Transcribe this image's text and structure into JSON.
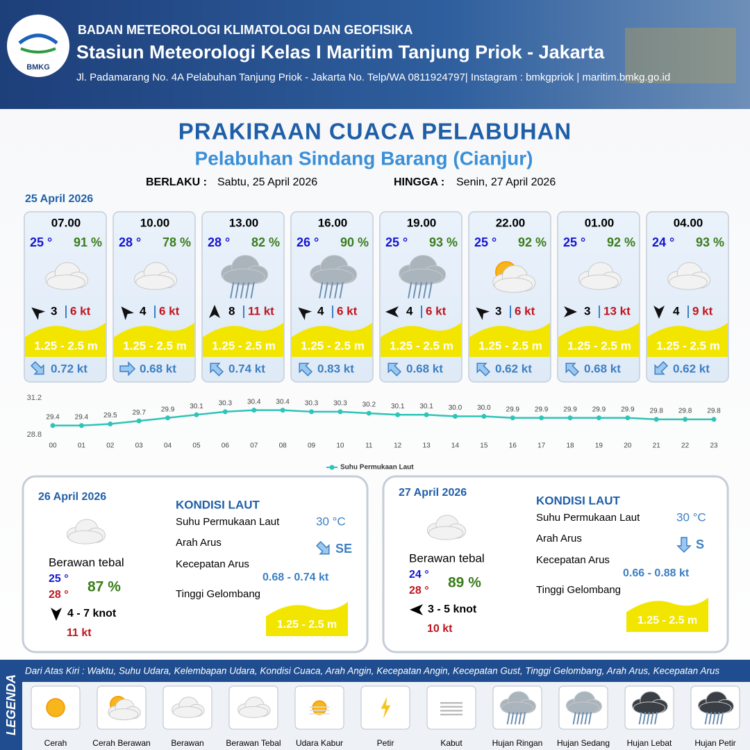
{
  "header": {
    "agency": "BADAN METEOROLOGI KLIMATOLOGI DAN GEOFISIKA",
    "station": "Stasiun Meteorologi Kelas I Maritim Tanjung Priok - Jakarta",
    "address": "Jl. Padamarang No. 4A Pelabuhan Tanjung Priok - Jakarta No. Telp/WA 0811924797| Instagram : bmkgpriok | maritim.bmkg.go.id",
    "logo": "BMKG"
  },
  "title": "PRAKIRAAN CUACA PELABUHAN",
  "subtitle": "Pelabuhan Sindang Barang (Cianjur)",
  "validity": {
    "from_label": "BERLAKU :",
    "from": "Sabtu, 25 April 2026",
    "to_label": "HINGGA :",
    "to": "Senin, 27 April 2026"
  },
  "day1": {
    "date": "25 April 2026",
    "slots": [
      {
        "time": "07.00",
        "temp": "25 °",
        "humidity": "91 %",
        "wind": "3",
        "gust": "6 kt",
        "wave": "1.25 - 2.5 m",
        "current": "0.72 kt"
      },
      {
        "time": "10.00",
        "temp": "28 °",
        "humidity": "78 %",
        "wind": "4",
        "gust": "6 kt",
        "wave": "1.25 - 2.5 m",
        "current": "0.68 kt"
      },
      {
        "time": "13.00",
        "temp": "28 °",
        "humidity": "82 %",
        "wind": "8",
        "gust": "11 kt",
        "wave": "1.25 - 2.5 m",
        "current": "0.74 kt"
      },
      {
        "time": "16.00",
        "temp": "26 °",
        "humidity": "90 %",
        "wind": "4",
        "gust": "6 kt",
        "wave": "1.25 - 2.5 m",
        "current": "0.83 kt"
      },
      {
        "time": "19.00",
        "temp": "25 °",
        "humidity": "93 %",
        "wind": "4",
        "gust": "6 kt",
        "wave": "1.25 - 2.5 m",
        "current": "0.68 kt"
      },
      {
        "time": "22.00",
        "temp": "25 °",
        "humidity": "92 %",
        "wind": "3",
        "gust": "6 kt",
        "wave": "1.25 - 2.5 m",
        "current": "0.62 kt"
      },
      {
        "time": "01.00",
        "temp": "25 °",
        "humidity": "92 %",
        "wind": "3",
        "gust": "13 kt",
        "wave": "1.25 - 2.5 m",
        "current": "0.68 kt"
      },
      {
        "time": "04.00",
        "temp": "24 °",
        "humidity": "93 %",
        "wind": "4",
        "gust": "9 kt",
        "wave": "1.25 - 2.5 m",
        "current": "0.62 kt"
      }
    ]
  },
  "sst_chart": {
    "type": "line",
    "categories": [
      "00",
      "01",
      "02",
      "03",
      "04",
      "05",
      "06",
      "07",
      "08",
      "09",
      "10",
      "11",
      "12",
      "13",
      "14",
      "15",
      "16",
      "17",
      "18",
      "19",
      "20",
      "21",
      "22",
      "23"
    ],
    "series": [
      {
        "name": "Suhu Permukaan Laut",
        "color": "#2ec4b6",
        "values": [
          29.4,
          29.4,
          29.5,
          29.7,
          29.9,
          30.1,
          30.3,
          30.4,
          30.4,
          30.3,
          30.3,
          30.2,
          30.1,
          30.1,
          30.0,
          30.0,
          29.9,
          29.9,
          29.9,
          29.9,
          29.9,
          29.8,
          29.8,
          29.8
        ],
        "value_labels": [
          "29.4",
          "29.4",
          "29.5",
          "29.7",
          "29.9",
          "30.1",
          "30.3",
          "30.4",
          "30.4",
          "30.3",
          "30.3",
          "30.2",
          "30.1",
          "30.1",
          "30.0",
          "30.0",
          "29.9",
          "29.9",
          "29.9",
          "29.9",
          "29.9",
          "29.8",
          "29.8",
          "29.8"
        ]
      }
    ],
    "ylim": [
      28.8,
      31.2
    ],
    "yticks": [
      28.8,
      31.2
    ]
  },
  "days": [
    {
      "date": "26 April 2026",
      "condition": "Berawan tebal",
      "temp_min": "25 °",
      "temp_max": "28 °",
      "humidity": "87 %",
      "wind": "4  - 7 knot",
      "gust": "11 kt",
      "sea_heading": "KONDISI LAUT",
      "sea_labels": [
        "Suhu Permukaan Laut",
        "Arah Arus",
        "Kecepatan Arus",
        "Tinggi Gelombang"
      ],
      "sst": "30 °C",
      "current_dir": "SE",
      "current_speed": "0.68  - 0.74 kt",
      "wave": "1.25 - 2.5 m"
    },
    {
      "date": "27 April 2026",
      "condition": "Berawan tebal",
      "temp_min": "24 °",
      "temp_max": "28 °",
      "humidity": "89 %",
      "wind": "3  - 5 knot",
      "gust": "10 kt",
      "sea_heading": "KONDISI LAUT",
      "sea_labels": [
        "Suhu Permukaan Laut",
        "Arah Arus",
        "Kecepatan Arus",
        "Tinggi Gelombang"
      ],
      "sst": "30 °C",
      "current_dir": "S",
      "current_speed": "0.66  - 0.88 kt",
      "wave": "1.25 - 2.5 m"
    }
  ],
  "legend": {
    "heading": "LEGENDA",
    "description": "Dari Atas Kiri : Waktu, Suhu Udara, Kelembapan Udara, Kondisi Cuaca, Arah Angin, Kecepatan Angin, Kecepatan Gust, Tinggi Gelombang, Arah Arus, Kecepatan Arus",
    "items": [
      "Cerah",
      "Cerah Berawan",
      "Berawan",
      "Berawan Tebal",
      "Udara Kabur",
      "Petir",
      "Kabut",
      "Hujan Ringan",
      "Hujan Sedang",
      "Hujan Lebat",
      "Hujan Petir"
    ]
  }
}
